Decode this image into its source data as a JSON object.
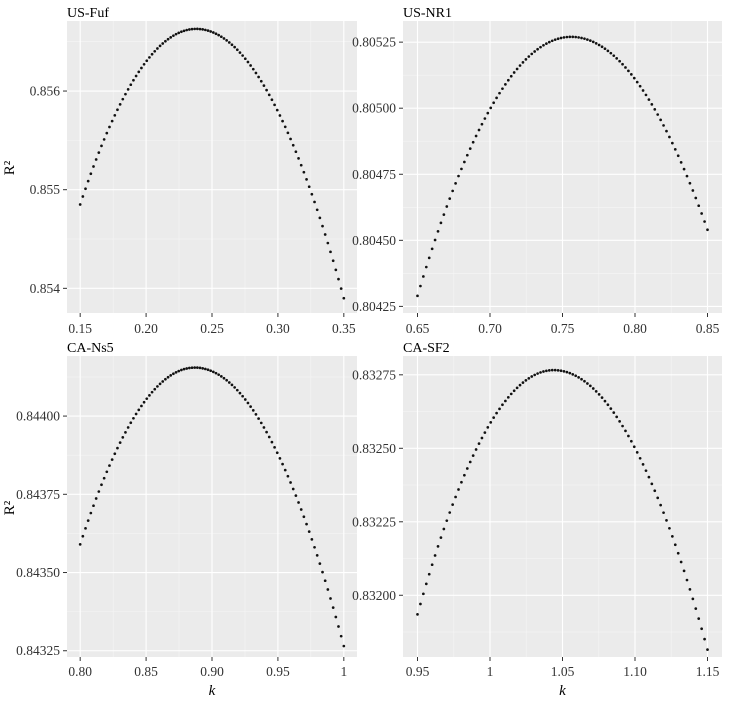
{
  "chart_data": [
    {
      "type": "scatter",
      "title": "US-Fuf",
      "xlabel": "",
      "ylabel": "R²",
      "xlim": [
        0.14,
        0.36
      ],
      "ylim": [
        0.85375,
        0.85671
      ],
      "x_ticks": [
        0.15,
        0.2,
        0.25,
        0.3,
        0.35
      ],
      "x_tick_labels": [
        "0.15",
        "0.20",
        "0.25",
        "0.30",
        "0.35"
      ],
      "y_ticks": [
        0.854,
        0.855,
        0.856
      ],
      "y_tick_labels": [
        "0.854",
        "0.855",
        "0.856"
      ],
      "curve": {
        "x_start": 0.15,
        "x_end": 0.35,
        "n_points": 100,
        "x_vertex": 0.238,
        "y_vertex": 0.85663,
        "y_at_start": 0.85485,
        "y_at_end": 0.8539
      },
      "grid": true
    },
    {
      "type": "scatter",
      "title": "US-NR1",
      "xlabel": "",
      "ylabel": "",
      "xlim": [
        0.64,
        0.86
      ],
      "ylim": [
        0.804225,
        0.80533
      ],
      "x_ticks": [
        0.65,
        0.7,
        0.75,
        0.8,
        0.85
      ],
      "x_tick_labels": [
        "0.65",
        "0.70",
        "0.75",
        "0.80",
        "0.85"
      ],
      "y_ticks": [
        0.80425,
        0.8045,
        0.80475,
        0.805,
        0.80525
      ],
      "y_tick_labels": [
        "0.80425",
        "0.80450",
        "0.80475",
        "0.80500",
        "0.80525"
      ],
      "curve": {
        "x_start": 0.65,
        "x_end": 0.85,
        "n_points": 100,
        "x_vertex": 0.756,
        "y_vertex": 0.80527,
        "y_at_start": 0.80429,
        "y_at_end": 0.80454
      },
      "grid": true
    },
    {
      "type": "scatter",
      "title": "CA-Ns5",
      "xlabel": "k",
      "ylabel": "R²",
      "xlim": [
        0.79,
        1.01
      ],
      "ylim": [
        0.84323,
        0.844192
      ],
      "x_ticks": [
        0.8,
        0.85,
        0.9,
        0.95,
        1.0
      ],
      "x_tick_labels": [
        "0.80",
        "0.85",
        "0.90",
        "0.95",
        "1"
      ],
      "y_ticks": [
        0.84325,
        0.8435,
        0.84375,
        0.844
      ],
      "y_tick_labels": [
        "0.84325",
        "0.84350",
        "0.84375",
        "0.84400"
      ],
      "curve": {
        "x_start": 0.8,
        "x_end": 1.0,
        "n_points": 100,
        "x_vertex": 0.887,
        "y_vertex": 0.844155,
        "y_at_start": 0.84359,
        "y_at_end": 0.843265
      },
      "grid": true
    },
    {
      "type": "scatter",
      "title": "CA-SF2",
      "xlabel": "k",
      "ylabel": "",
      "xlim": [
        0.94,
        1.16
      ],
      "ylim": [
        0.83179,
        0.832814
      ],
      "x_ticks": [
        0.95,
        1.0,
        1.05,
        1.1,
        1.15
      ],
      "x_tick_labels": [
        "0.95",
        "1",
        "1.05",
        "1.10",
        "1.15"
      ],
      "y_ticks": [
        0.832,
        0.83225,
        0.8325,
        0.83275
      ],
      "y_tick_labels": [
        "0.83200",
        "0.83225",
        "0.83250",
        "0.83275"
      ],
      "curve": {
        "x_start": 0.95,
        "x_end": 1.15,
        "n_points": 100,
        "x_vertex": 1.044,
        "y_vertex": 0.832766,
        "y_at_start": 0.831935,
        "y_at_end": 0.831815
      },
      "grid": true
    }
  ]
}
